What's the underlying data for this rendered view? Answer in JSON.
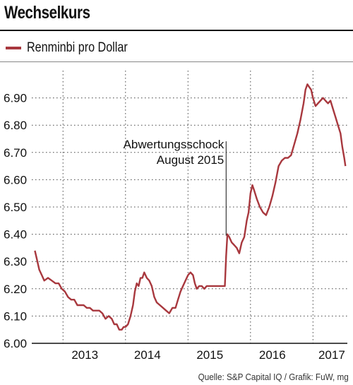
{
  "title": "Wechselkurs",
  "source": "Quelle: S&P Capital IQ / Grafik: FuW, mg",
  "chart_data": {
    "type": "line",
    "series": [
      {
        "name": "Renminbi pro Dollar",
        "color": "#a8383e",
        "points": [
          [
            2012.55,
            6.34
          ],
          [
            2012.58,
            6.31
          ],
          [
            2012.62,
            6.27
          ],
          [
            2012.66,
            6.25
          ],
          [
            2012.7,
            6.23
          ],
          [
            2012.76,
            6.24
          ],
          [
            2012.82,
            6.23
          ],
          [
            2012.88,
            6.22
          ],
          [
            2012.93,
            6.22
          ],
          [
            2012.98,
            6.2
          ],
          [
            2013.03,
            6.19
          ],
          [
            2013.08,
            6.17
          ],
          [
            2013.13,
            6.16
          ],
          [
            2013.18,
            6.16
          ],
          [
            2013.23,
            6.14
          ],
          [
            2013.28,
            6.14
          ],
          [
            2013.33,
            6.14
          ],
          [
            2013.38,
            6.13
          ],
          [
            2013.43,
            6.13
          ],
          [
            2013.48,
            6.12
          ],
          [
            2013.53,
            6.12
          ],
          [
            2013.58,
            6.12
          ],
          [
            2013.63,
            6.11
          ],
          [
            2013.68,
            6.09
          ],
          [
            2013.73,
            6.1
          ],
          [
            2013.78,
            6.09
          ],
          [
            2013.82,
            6.07
          ],
          [
            2013.86,
            6.07
          ],
          [
            2013.9,
            6.05
          ],
          [
            2013.94,
            6.05
          ],
          [
            2013.97,
            6.06
          ],
          [
            2014.0,
            6.06
          ],
          [
            2014.04,
            6.07
          ],
          [
            2014.08,
            6.1
          ],
          [
            2014.12,
            6.14
          ],
          [
            2014.15,
            6.19
          ],
          [
            2014.18,
            6.22
          ],
          [
            2014.21,
            6.21
          ],
          [
            2014.24,
            6.24
          ],
          [
            2014.27,
            6.24
          ],
          [
            2014.3,
            6.26
          ],
          [
            2014.34,
            6.24
          ],
          [
            2014.38,
            6.23
          ],
          [
            2014.42,
            6.21
          ],
          [
            2014.46,
            6.17
          ],
          [
            2014.5,
            6.15
          ],
          [
            2014.55,
            6.14
          ],
          [
            2014.6,
            6.13
          ],
          [
            2014.65,
            6.12
          ],
          [
            2014.7,
            6.11
          ],
          [
            2014.75,
            6.13
          ],
          [
            2014.8,
            6.13
          ],
          [
            2014.84,
            6.16
          ],
          [
            2014.88,
            6.19
          ],
          [
            2014.92,
            6.21
          ],
          [
            2014.96,
            6.23
          ],
          [
            2015.0,
            6.25
          ],
          [
            2015.04,
            6.26
          ],
          [
            2015.08,
            6.25
          ],
          [
            2015.11,
            6.22
          ],
          [
            2015.14,
            6.2
          ],
          [
            2015.18,
            6.21
          ],
          [
            2015.22,
            6.21
          ],
          [
            2015.26,
            6.2
          ],
          [
            2015.3,
            6.21
          ],
          [
            2015.35,
            6.21
          ],
          [
            2015.4,
            6.21
          ],
          [
            2015.45,
            6.21
          ],
          [
            2015.5,
            6.21
          ],
          [
            2015.55,
            6.21
          ],
          [
            2015.59,
            6.21
          ],
          [
            2015.61,
            6.32
          ],
          [
            2015.63,
            6.4
          ],
          [
            2015.66,
            6.39
          ],
          [
            2015.7,
            6.37
          ],
          [
            2015.74,
            6.36
          ],
          [
            2015.78,
            6.35
          ],
          [
            2015.82,
            6.33
          ],
          [
            2015.86,
            6.37
          ],
          [
            2015.9,
            6.39
          ],
          [
            2015.94,
            6.45
          ],
          [
            2015.97,
            6.48
          ],
          [
            2016.0,
            6.55
          ],
          [
            2016.03,
            6.58
          ],
          [
            2016.06,
            6.56
          ],
          [
            2016.1,
            6.53
          ],
          [
            2016.15,
            6.5
          ],
          [
            2016.2,
            6.48
          ],
          [
            2016.25,
            6.47
          ],
          [
            2016.3,
            6.5
          ],
          [
            2016.35,
            6.54
          ],
          [
            2016.4,
            6.59
          ],
          [
            2016.45,
            6.65
          ],
          [
            2016.5,
            6.67
          ],
          [
            2016.55,
            6.68
          ],
          [
            2016.6,
            6.68
          ],
          [
            2016.65,
            6.69
          ],
          [
            2016.7,
            6.73
          ],
          [
            2016.75,
            6.77
          ],
          [
            2016.8,
            6.82
          ],
          [
            2016.85,
            6.88
          ],
          [
            2016.88,
            6.93
          ],
          [
            2016.91,
            6.95
          ],
          [
            2016.94,
            6.94
          ],
          [
            2016.97,
            6.93
          ],
          [
            2017.0,
            6.9
          ],
          [
            2017.04,
            6.87
          ],
          [
            2017.08,
            6.88
          ],
          [
            2017.12,
            6.89
          ],
          [
            2017.16,
            6.9
          ],
          [
            2017.2,
            6.89
          ],
          [
            2017.24,
            6.88
          ],
          [
            2017.28,
            6.89
          ],
          [
            2017.32,
            6.86
          ],
          [
            2017.36,
            6.83
          ],
          [
            2017.4,
            6.8
          ],
          [
            2017.44,
            6.77
          ],
          [
            2017.47,
            6.72
          ],
          [
            2017.5,
            6.68
          ],
          [
            2017.52,
            6.65
          ]
        ]
      }
    ],
    "x_ticks": [
      {
        "label": "2013",
        "x": 2013.35
      },
      {
        "label": "2014",
        "x": 2014.35
      },
      {
        "label": "2015",
        "x": 2015.35
      },
      {
        "label": "2016",
        "x": 2016.35
      },
      {
        "label": "2017",
        "x": 2017.3
      }
    ],
    "x_gridlines": [
      2013.0,
      2014.0,
      2015.0,
      2016.0,
      2017.0
    ],
    "xlim": [
      2012.5,
      2017.55
    ],
    "ylim": [
      6.0,
      7.0
    ],
    "y_ticks": [
      {
        "value": 6.0,
        "label": "6.00"
      },
      {
        "value": 6.1,
        "label": "6.10"
      },
      {
        "value": 6.2,
        "label": "6.20"
      },
      {
        "value": 6.3,
        "label": "6.30"
      },
      {
        "value": 6.4,
        "label": "6.40"
      },
      {
        "value": 6.5,
        "label": "6.50"
      },
      {
        "value": 6.6,
        "label": "6.60"
      },
      {
        "value": 6.7,
        "label": "6.70"
      },
      {
        "value": 6.8,
        "label": "6.80"
      },
      {
        "value": 6.9,
        "label": "6.90"
      }
    ],
    "annotation": {
      "lines": [
        "Abwertungsschock",
        "August 2015"
      ],
      "x": 2015.61,
      "y": 6.4
    },
    "grid": "dotted",
    "legend_position": "top-left"
  }
}
